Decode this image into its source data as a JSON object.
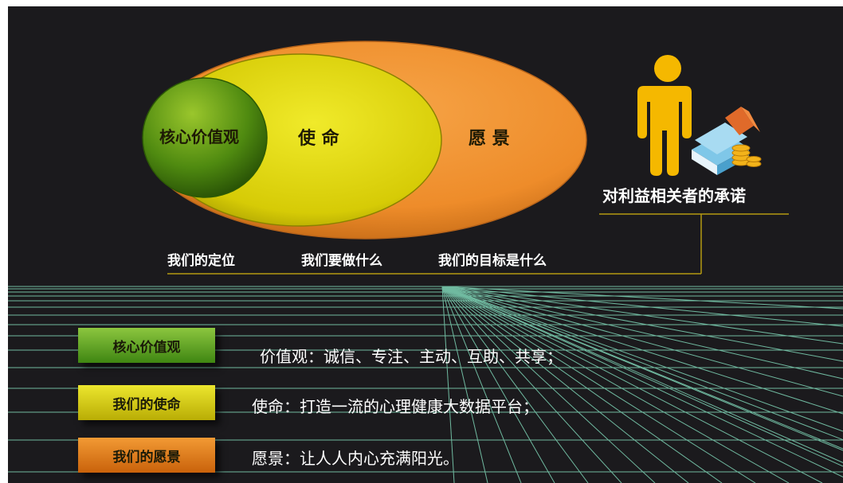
{
  "circles": {
    "core": "核心价值观",
    "mission": "使 命",
    "vision": "愿 景"
  },
  "stakeholder_label": "对利益相关者的承诺",
  "questions": {
    "core": "我们的定位",
    "mission": "我们要做什么",
    "vision": "我们的目标是什么"
  },
  "rows": [
    {
      "tag": "核心价值观",
      "text": "价值观：诚信、专注、主动、互助、共享；",
      "color": "#5fa01e"
    },
    {
      "tag": "我们的使命",
      "text": "使命：打造一流的心理健康大数据平台；",
      "color": "#cfc20a"
    },
    {
      "tag": "我们的愿景",
      "text": "愿景：让人人内心充满阳光。",
      "color": "#e07a12"
    }
  ],
  "colors": {
    "vision": "#f0922e",
    "mission": "#d8cf0a",
    "core": "#4f8a10",
    "grid": "#7fd6b8",
    "person": "#f5b800"
  },
  "icons": [
    "person-icon",
    "money-stack-icon"
  ]
}
